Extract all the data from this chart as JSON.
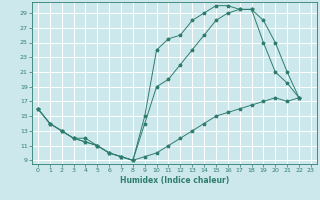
{
  "xlabel": "Humidex (Indice chaleur)",
  "xlim": [
    -0.5,
    23.5
  ],
  "ylim": [
    8.5,
    30.5
  ],
  "xticks": [
    0,
    1,
    2,
    3,
    4,
    5,
    6,
    7,
    8,
    9,
    10,
    11,
    12,
    13,
    14,
    15,
    16,
    17,
    18,
    19,
    20,
    21,
    22,
    23
  ],
  "yticks": [
    9,
    11,
    13,
    15,
    17,
    19,
    21,
    23,
    25,
    27,
    29
  ],
  "bg_color": "#cde8ec",
  "grid_color": "#ffffff",
  "line_color": "#2e7d6e",
  "line1_x": [
    0,
    1,
    2,
    3,
    4,
    5,
    6,
    7,
    8,
    9,
    10,
    11,
    12,
    13,
    14,
    15,
    16,
    17,
    18,
    19,
    20,
    21,
    22
  ],
  "line1_y": [
    16,
    14,
    13,
    12,
    12,
    11,
    10,
    9.5,
    9,
    9.5,
    10,
    11,
    12,
    13,
    14,
    15,
    15.5,
    16,
    16.5,
    17,
    17.5,
    17,
    17.5
  ],
  "line2_x": [
    0,
    1,
    2,
    3,
    4,
    5,
    6,
    7,
    8,
    9,
    10,
    11,
    12,
    13,
    14,
    15,
    16,
    17,
    18,
    19,
    20,
    21,
    22
  ],
  "line2_y": [
    16,
    14,
    13,
    12,
    11.5,
    11,
    10,
    9.5,
    9,
    15,
    24,
    25.5,
    26,
    28,
    29,
    30,
    30,
    29.5,
    29.5,
    25,
    21,
    19.5,
    17.5
  ],
  "line3_x": [
    0,
    1,
    2,
    3,
    4,
    5,
    6,
    7,
    8,
    9,
    10,
    11,
    12,
    13,
    14,
    15,
    16,
    17,
    18,
    19,
    20,
    21,
    22
  ],
  "line3_y": [
    16,
    14,
    13,
    12,
    11.5,
    11,
    10,
    9.5,
    9,
    14,
    19,
    20,
    22,
    24,
    26,
    28,
    29,
    29.5,
    29.5,
    28,
    25,
    21,
    17.5
  ]
}
